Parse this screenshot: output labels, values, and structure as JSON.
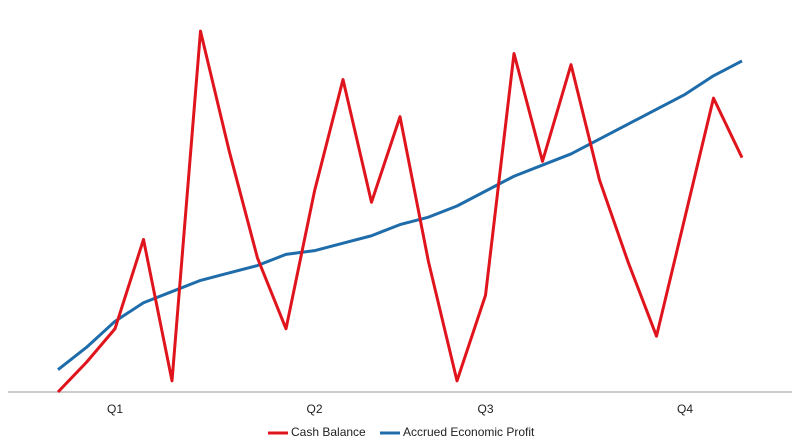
{
  "chart_data": {
    "type": "line",
    "categories": [
      null,
      null,
      "Q1",
      null,
      null,
      null,
      null,
      null,
      null,
      "Q2",
      null,
      null,
      null,
      null,
      null,
      "Q3",
      null,
      null,
      null,
      null,
      null,
      null,
      "Q4",
      null,
      null
    ],
    "series": [
      {
        "name": "Cash Balance",
        "color": "#e0141c",
        "values": [
          0,
          8,
          17,
          41,
          3,
          97,
          65,
          36,
          17,
          54,
          84,
          51,
          74,
          35,
          3,
          26,
          91,
          62,
          88,
          57,
          35,
          15,
          47,
          79,
          63
        ]
      },
      {
        "name": "Accrued Economic Profit",
        "color": "#1f6cab",
        "values": [
          6,
          12,
          19,
          24,
          27,
          30,
          32,
          34,
          37,
          38,
          40,
          42,
          45,
          47,
          50,
          54,
          58,
          61,
          64,
          68,
          72,
          76,
          80,
          85,
          89
        ]
      }
    ],
    "ylim": [
      0,
      100
    ],
    "legend": "bottom"
  }
}
